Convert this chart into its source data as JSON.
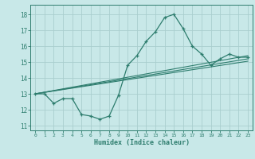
{
  "main_x": [
    0,
    1,
    2,
    3,
    4,
    5,
    6,
    7,
    8,
    9,
    10,
    11,
    12,
    13,
    14,
    15,
    16,
    17,
    18,
    19,
    20,
    21,
    22,
    23
  ],
  "main_y": [
    13.0,
    13.0,
    12.4,
    12.7,
    12.7,
    11.7,
    11.6,
    11.4,
    11.6,
    12.9,
    14.8,
    15.4,
    16.3,
    16.9,
    17.8,
    18.0,
    17.1,
    16.0,
    15.5,
    14.8,
    15.2,
    15.5,
    15.3,
    15.3
  ],
  "line1_x": [
    0,
    23
  ],
  "line1_y": [
    13.0,
    15.4
  ],
  "line2_x": [
    0,
    23
  ],
  "line2_y": [
    13.0,
    15.2
  ],
  "line3_x": [
    0,
    23
  ],
  "line3_y": [
    13.0,
    15.05
  ],
  "color": "#2e7d6e",
  "bg_color": "#c8e8e8",
  "grid_color": "#aacece",
  "xlabel": "Humidex (Indice chaleur)",
  "xlim": [
    -0.5,
    23.5
  ],
  "ylim": [
    10.7,
    18.6
  ],
  "yticks": [
    11,
    12,
    13,
    14,
    15,
    16,
    17,
    18
  ],
  "xticks": [
    0,
    1,
    2,
    3,
    4,
    5,
    6,
    7,
    8,
    9,
    10,
    11,
    12,
    13,
    14,
    15,
    16,
    17,
    18,
    19,
    20,
    21,
    22,
    23
  ]
}
